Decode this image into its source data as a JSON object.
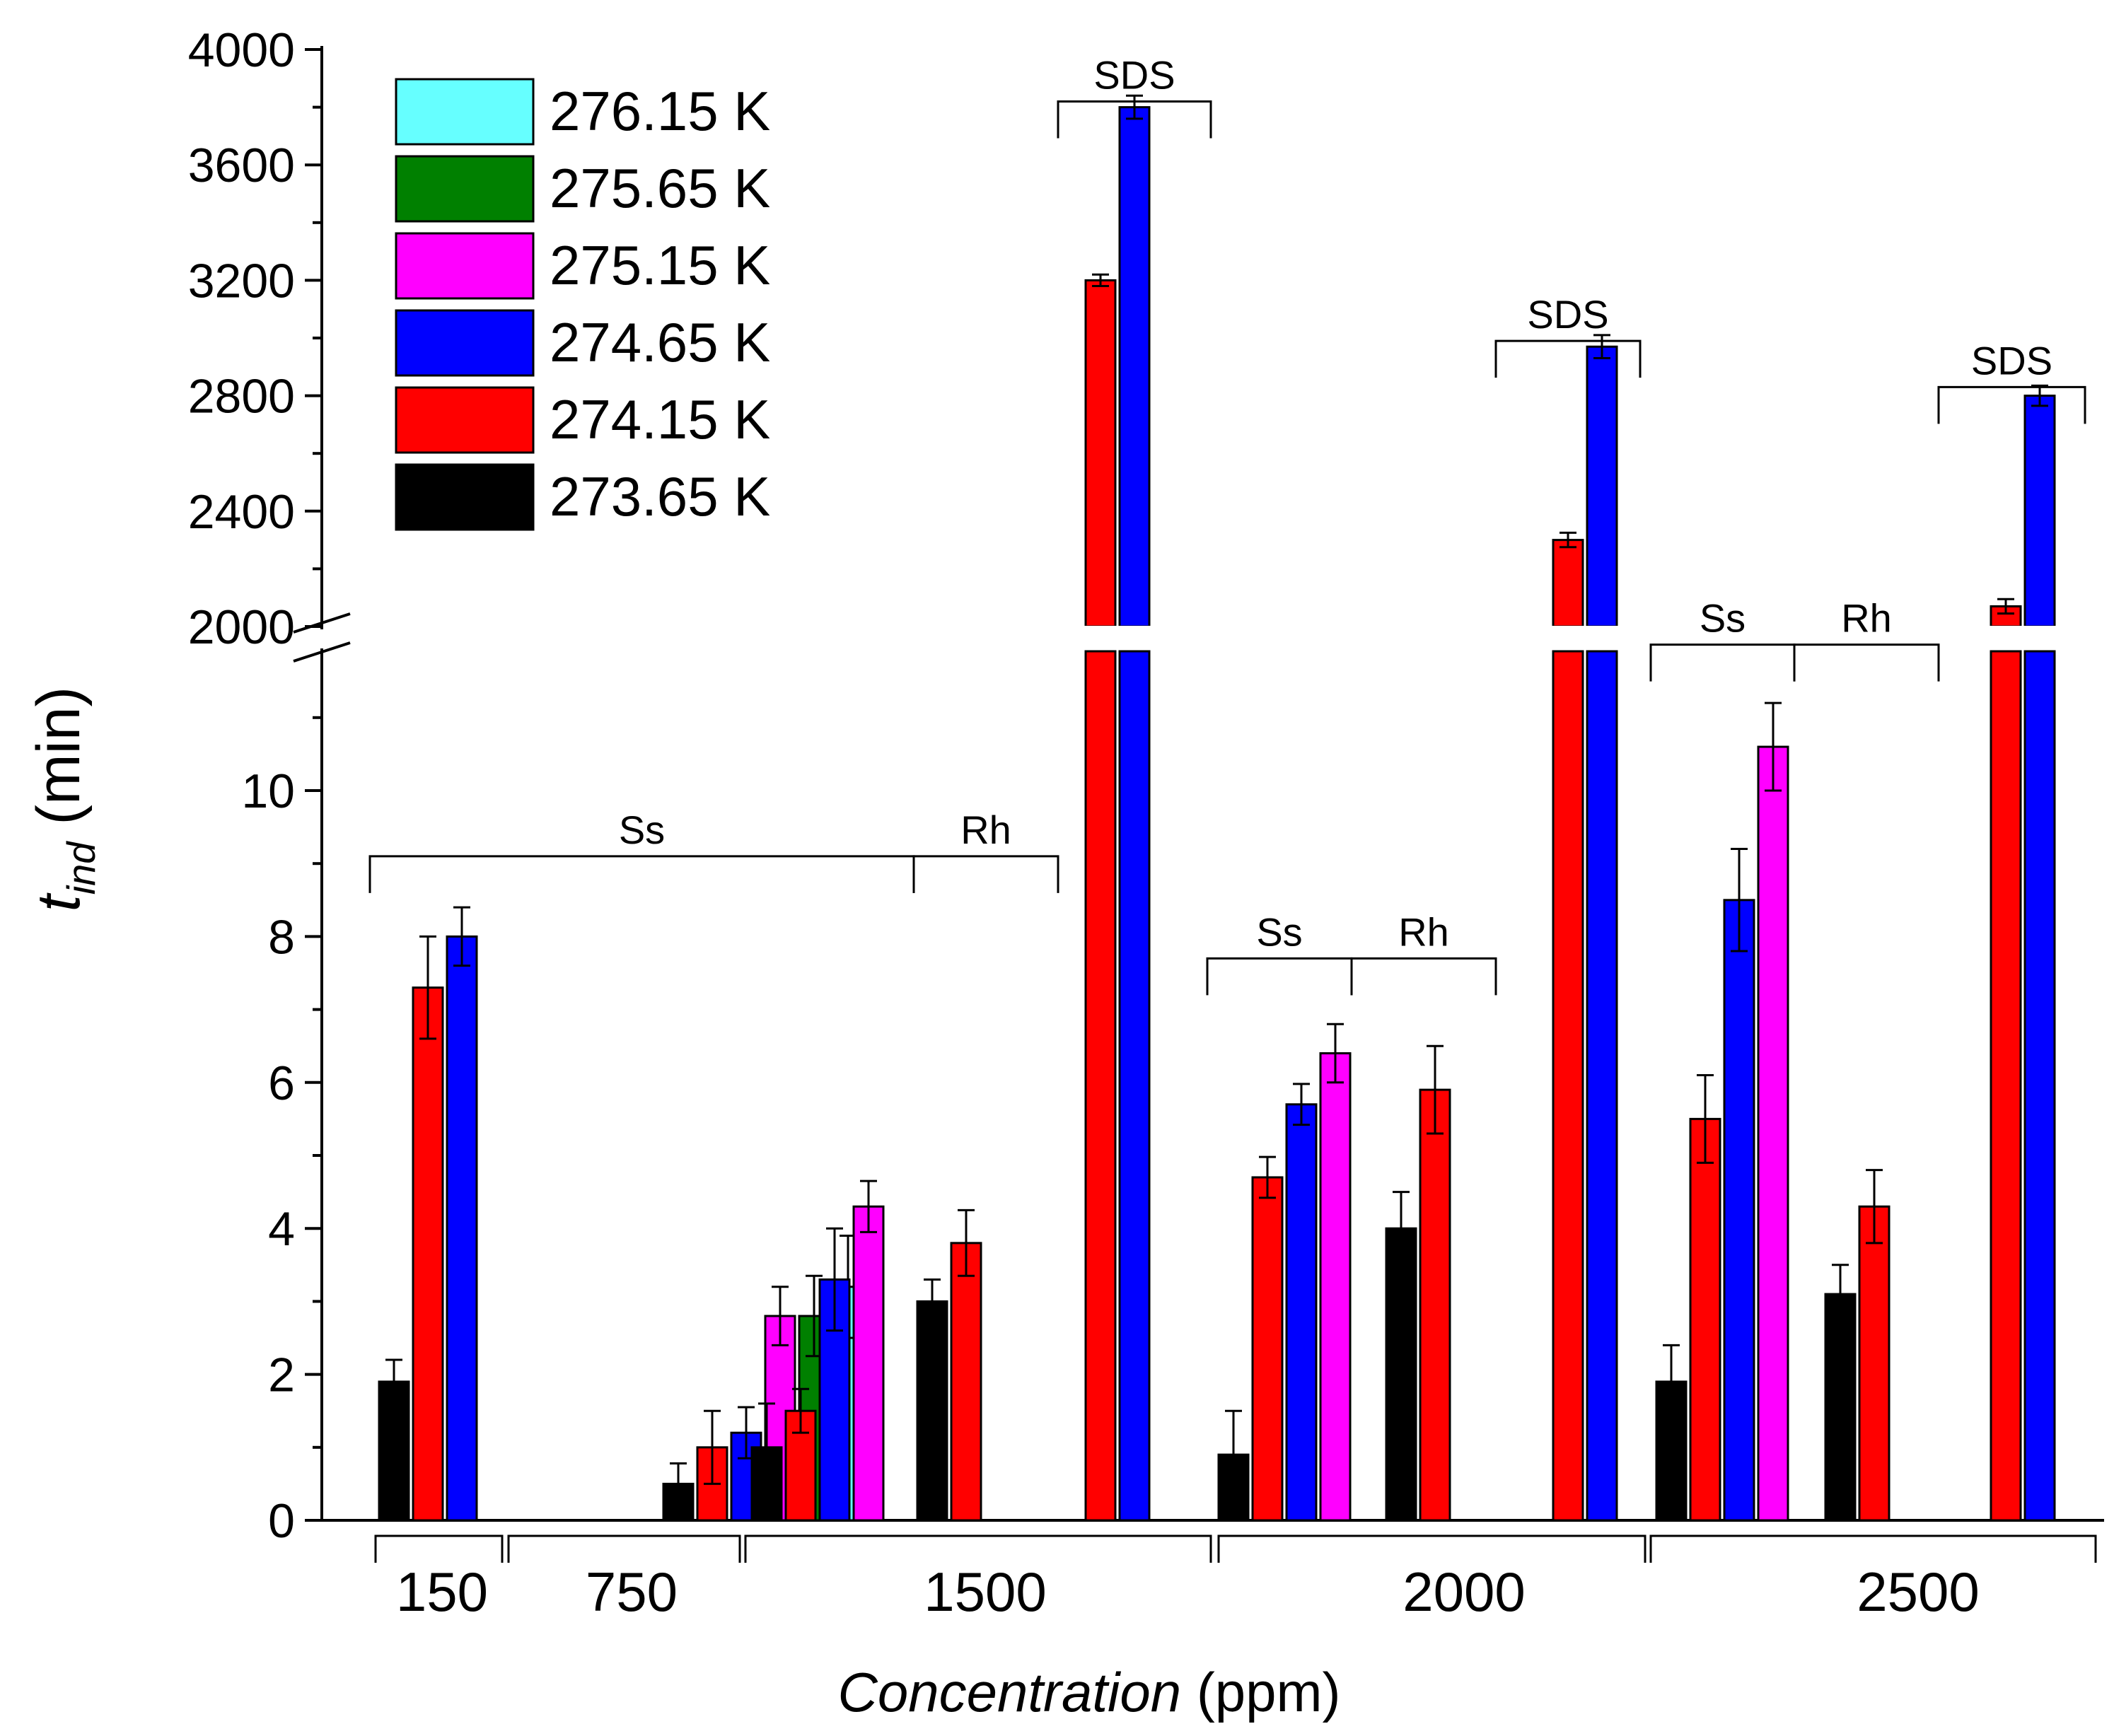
{
  "chart_data": {
    "type": "bar",
    "title": "",
    "xlabel_italic": "Concentration",
    "xlabel_unit": "(ppm)",
    "ylabel_symbol": "t",
    "ylabel_subscript": "ind",
    "ylabel_unit": "(min)",
    "ylim_lower": [
      0,
      12
    ],
    "ylim_upper": [
      2000,
      4000
    ],
    "yticks_lower": [
      "0",
      "2",
      "4",
      "6",
      "8",
      "10"
    ],
    "yticks_upper": [
      "2000",
      "2400",
      "2800",
      "3200",
      "3600",
      "4000"
    ],
    "legend": [
      {
        "label": "276.15 K",
        "color": "#66FFFF"
      },
      {
        "label": "275.65 K",
        "color": "#008000"
      },
      {
        "label": "275.15 K",
        "color": "#FF00FF"
      },
      {
        "label": "274.65 K",
        "color": "#0000FF"
      },
      {
        "label": "274.15 K",
        "color": "#FF0000"
      },
      {
        "label": "273.65 K",
        "color": "#000000"
      }
    ],
    "concentrations": [
      "150",
      "750",
      "1500",
      "2000",
      "2500"
    ],
    "groups": [
      {
        "concentration": "150",
        "bars": [
          {
            "temp": "273.65 K",
            "value": 1.9,
            "error": 0.3
          },
          {
            "temp": "274.15 K",
            "value": 7.3,
            "error": 0.7
          },
          {
            "temp": "274.65 K",
            "value": 8.0,
            "error": 0.4
          }
        ]
      },
      {
        "concentration": "750",
        "bars": [
          {
            "temp": "273.65 K",
            "value": 0.5,
            "error": 0.28
          },
          {
            "temp": "274.15 K",
            "value": 1.0,
            "error": 0.5
          },
          {
            "temp": "274.65 K",
            "value": 1.2,
            "error": 0.35
          },
          {
            "temp": "275.15 K",
            "value": 2.8,
            "error": 0.4
          },
          {
            "temp": "275.65 K",
            "value": 2.8,
            "error": 0.55
          },
          {
            "temp": "276.15 K",
            "value": 3.2,
            "error": 0.7
          }
        ]
      },
      {
        "concentration": "1500",
        "bars": [
          {
            "temp": "273.65 K",
            "value": 1.0,
            "error": 0.6
          },
          {
            "temp": "274.15 K",
            "value": 1.5,
            "error": 0.3
          },
          {
            "temp": "274.65 K",
            "value": 3.3,
            "error": 0.7
          },
          {
            "temp": "275.15 K",
            "value": 4.3,
            "error": 0.35
          }
        ]
      },
      {
        "concentration": "1500",
        "bars": [
          {
            "temp": "273.65 K",
            "value": 3.0,
            "error": 0.3
          },
          {
            "temp": "274.15 K",
            "value": 3.8,
            "error": 0.45
          }
        ]
      },
      {
        "concentration": "1500",
        "bars": [
          {
            "temp": "274.15 K",
            "value": 3200,
            "error": 20
          },
          {
            "temp": "274.65 K",
            "value": 3800,
            "error": 40
          }
        ]
      },
      {
        "concentration": "2000",
        "bars": [
          {
            "temp": "273.65 K",
            "value": 0.9,
            "error": 0.6
          },
          {
            "temp": "274.15 K",
            "value": 4.7,
            "error": 0.28
          },
          {
            "temp": "274.65 K",
            "value": 5.7,
            "error": 0.28
          },
          {
            "temp": "275.15 K",
            "value": 6.4,
            "error": 0.4
          }
        ]
      },
      {
        "concentration": "2000",
        "bars": [
          {
            "temp": "273.65 K",
            "value": 4.0,
            "error": 0.5
          },
          {
            "temp": "274.15 K",
            "value": 5.9,
            "error": 0.6
          }
        ]
      },
      {
        "concentration": "2000",
        "bars": [
          {
            "temp": "274.15 K",
            "value": 2300,
            "error": 25
          },
          {
            "temp": "274.65 K",
            "value": 2970,
            "error": 40
          }
        ]
      },
      {
        "concentration": "2500",
        "bars": [
          {
            "temp": "273.65 K",
            "value": 1.9,
            "error": 0.5
          },
          {
            "temp": "274.15 K",
            "value": 5.5,
            "error": 0.6
          },
          {
            "temp": "274.65 K",
            "value": 8.5,
            "error": 0.7
          },
          {
            "temp": "275.15 K",
            "value": 10.6,
            "error": 0.6
          }
        ]
      },
      {
        "concentration": "2500",
        "bars": [
          {
            "temp": "273.65 K",
            "value": 3.1,
            "error": 0.4
          },
          {
            "temp": "274.15 K",
            "value": 4.3,
            "error": 0.5
          }
        ]
      },
      {
        "concentration": "2500",
        "bars": [
          {
            "temp": "274.15 K",
            "value": 2070,
            "error": 25
          },
          {
            "temp": "274.65 K",
            "value": 2800,
            "error": 35
          }
        ]
      }
    ],
    "annotations": [
      {
        "label": "Ss",
        "axis": "lower",
        "level": 9.1,
        "from_group": 0,
        "to_group": 2
      },
      {
        "label": "Rh",
        "axis": "lower",
        "level": 9.1,
        "from_group": 3,
        "to_group": 3
      },
      {
        "label": "SDS",
        "axis": "upper",
        "level": 3820,
        "from_group": 4,
        "to_group": 4
      },
      {
        "label": "Ss",
        "axis": "lower",
        "level": 7.7,
        "from_group": 5,
        "to_group": 5
      },
      {
        "label": "Rh",
        "axis": "lower",
        "level": 7.7,
        "from_group": 6,
        "to_group": 6
      },
      {
        "label": "SDS",
        "axis": "upper",
        "level": 2990,
        "from_group": 7,
        "to_group": 7
      },
      {
        "label": "Ss",
        "axis": "lower",
        "level": 12.0,
        "from_group": 8,
        "to_group": 8
      },
      {
        "label": "Rh",
        "axis": "lower",
        "level": 12.0,
        "from_group": 9,
        "to_group": 9
      },
      {
        "label": "SDS",
        "axis": "upper",
        "level": 2830,
        "from_group": 10,
        "to_group": 10
      }
    ]
  }
}
